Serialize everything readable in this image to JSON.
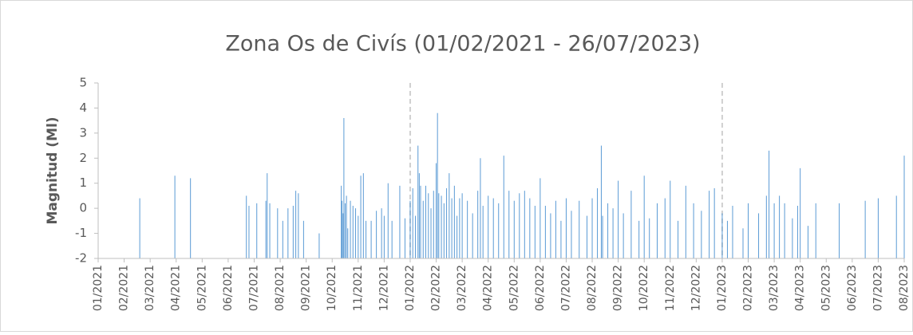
{
  "chart_data": {
    "type": "spike",
    "title": "Zona Os de Civís (01/02/2021 - 26/07/2023)",
    "y_label": "Magnitud (Ml)",
    "color": "#5b9bd5",
    "x": [
      1.6,
      2.95,
      3.55,
      5.7,
      5.8,
      6.1,
      6.45,
      6.5,
      6.6,
      6.9,
      7.1,
      7.3,
      7.5,
      7.6,
      7.7,
      7.9,
      8.5,
      9.35,
      9.38,
      9.42,
      9.45,
      9.5,
      9.55,
      9.6,
      9.7,
      9.8,
      9.9,
      10.0,
      10.1,
      10.2,
      10.3,
      10.5,
      10.7,
      10.9,
      11.0,
      11.15,
      11.3,
      11.6,
      11.8,
      12.0,
      12.1,
      12.2,
      12.3,
      12.35,
      12.4,
      12.5,
      12.6,
      12.7,
      12.8,
      12.9,
      13.0,
      13.05,
      13.1,
      13.2,
      13.3,
      13.4,
      13.5,
      13.6,
      13.7,
      13.8,
      13.9,
      14.0,
      14.2,
      14.4,
      14.6,
      14.7,
      14.8,
      15.0,
      15.2,
      15.4,
      15.6,
      15.8,
      16.0,
      16.2,
      16.4,
      16.6,
      16.8,
      17.0,
      17.2,
      17.4,
      17.6,
      17.8,
      18.0,
      18.2,
      18.5,
      18.8,
      19.0,
      19.2,
      19.35,
      19.4,
      19.6,
      19.8,
      20.0,
      20.2,
      20.5,
      20.8,
      21.0,
      21.2,
      21.5,
      21.8,
      22.0,
      22.3,
      22.6,
      22.9,
      23.2,
      23.5,
      23.7,
      24.0,
      24.2,
      24.4,
      24.8,
      25.0,
      25.4,
      25.7,
      25.8,
      26.0,
      26.2,
      26.4,
      26.7,
      26.9,
      27.0,
      27.3,
      27.6,
      28.5,
      29.5,
      30.0,
      30.7,
      31.0
    ],
    "values": [
      0.4,
      1.3,
      1.2,
      0.5,
      0.1,
      0.2,
      0.3,
      1.4,
      0.2,
      0.0,
      -0.5,
      0.0,
      0.1,
      0.7,
      0.6,
      -0.5,
      -1.0,
      0.9,
      0.3,
      -0.2,
      3.6,
      0.2,
      0.5,
      -0.8,
      0.3,
      0.1,
      0.0,
      -0.3,
      1.3,
      1.4,
      -0.5,
      -0.5,
      -0.1,
      0.0,
      -0.3,
      1.0,
      -0.5,
      0.9,
      -0.4,
      0.3,
      0.8,
      -0.3,
      2.5,
      1.4,
      0.9,
      0.3,
      0.9,
      0.6,
      0.0,
      0.7,
      1.8,
      3.8,
      0.6,
      0.5,
      0.2,
      0.8,
      1.4,
      0.4,
      0.9,
      -0.3,
      0.4,
      0.6,
      0.3,
      -0.2,
      0.7,
      2.0,
      0.1,
      0.5,
      0.4,
      0.2,
      2.1,
      0.7,
      0.3,
      0.6,
      0.7,
      0.4,
      0.1,
      1.2,
      0.1,
      -0.2,
      0.3,
      -0.5,
      0.4,
      -0.1,
      0.3,
      -0.3,
      0.4,
      0.8,
      2.5,
      -0.3,
      0.2,
      0.0,
      1.1,
      -0.2,
      0.7,
      -0.5,
      1.3,
      -0.4,
      0.2,
      0.4,
      1.1,
      -0.5,
      0.9,
      0.2,
      -0.1,
      0.7,
      0.8,
      -0.2,
      -0.5,
      0.1,
      -0.8,
      0.2,
      -0.2,
      0.5,
      2.3,
      0.2,
      0.5,
      0.2,
      -0.4,
      0.1,
      1.6,
      -0.7,
      0.2,
      0.2,
      0.3,
      0.4,
      0.5,
      2.1
    ],
    "xlim": [
      0,
      31
    ],
    "xticks": [
      {
        "value": 0,
        "label": "01/2021"
      },
      {
        "value": 1,
        "label": "02/2021"
      },
      {
        "value": 2,
        "label": "03/2021"
      },
      {
        "value": 3,
        "label": "04/2021"
      },
      {
        "value": 4,
        "label": "05/2021"
      },
      {
        "value": 5,
        "label": "06/2021"
      },
      {
        "value": 6,
        "label": "07/2021"
      },
      {
        "value": 7,
        "label": "08/2021"
      },
      {
        "value": 8,
        "label": "09/2021"
      },
      {
        "value": 9,
        "label": "10/2021"
      },
      {
        "value": 10,
        "label": "11/2021"
      },
      {
        "value": 11,
        "label": "12/2021"
      },
      {
        "value": 12,
        "label": "01/2022"
      },
      {
        "value": 13,
        "label": "02/2022"
      },
      {
        "value": 14,
        "label": "03/2022"
      },
      {
        "value": 15,
        "label": "04/2022"
      },
      {
        "value": 16,
        "label": "05/2022"
      },
      {
        "value": 17,
        "label": "06/2022"
      },
      {
        "value": 18,
        "label": "07/2022"
      },
      {
        "value": 19,
        "label": "08/2022"
      },
      {
        "value": 20,
        "label": "09/2022"
      },
      {
        "value": 21,
        "label": "10/2022"
      },
      {
        "value": 22,
        "label": "11/2022"
      },
      {
        "value": 23,
        "label": "12/2022"
      },
      {
        "value": 24,
        "label": "01/2023"
      },
      {
        "value": 25,
        "label": "02/2023"
      },
      {
        "value": 26,
        "label": "03/2023"
      },
      {
        "value": 27,
        "label": "04/2023"
      },
      {
        "value": 28,
        "label": "05/2023"
      },
      {
        "value": 29,
        "label": "06/2023"
      },
      {
        "value": 30,
        "label": "07/2023"
      },
      {
        "value": 31,
        "label": "08/2023"
      }
    ],
    "ylim": [
      -2,
      5
    ],
    "yticks": [
      -2,
      -1,
      0,
      1,
      2,
      3,
      4,
      5
    ],
    "vlines": [
      12,
      24
    ]
  }
}
